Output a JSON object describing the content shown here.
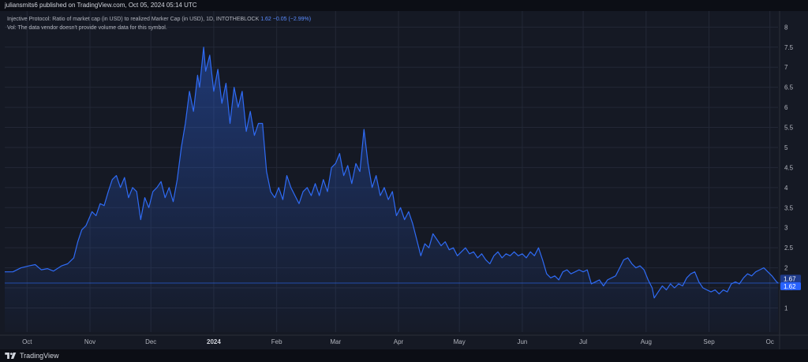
{
  "header": {
    "published_text": "juliansmits6 published on TradingView.com, Oct 05, 2024 05:14 UTC"
  },
  "legend": {
    "title": "Injective Protocol: Ratio of market cap (in USD) to realized Marker Cap (in USD), 1D, INTOTHEBLOCK",
    "last_value": "1.62",
    "change": "−0.05 (−2.99%)",
    "vol_note": "Vol: The data vendor doesn't provide volume data for this symbol."
  },
  "footer": {
    "brand": "TradingView",
    "logo_icon": "tradingview-logo-icon"
  },
  "colors": {
    "line": "#2f6bf5",
    "badge_current": "#2962ff",
    "badge_prev": "#1e3a8a",
    "background": "#151924",
    "grid": "#232836",
    "axis_text": "#b2b5be"
  },
  "chart_data": {
    "type": "area",
    "title": "Injective Protocol: Ratio of market cap (in USD) to realized Marker Cap (in USD), 1D, INTOTHEBLOCK",
    "x_range": [
      "2023-09-20",
      "2024-10-05"
    ],
    "ylim": [
      0.4,
      8.4
    ],
    "y_ticks": [
      1,
      1.5,
      2,
      2.5,
      3,
      3.5,
      4,
      4.5,
      5,
      5.5,
      6,
      6.5,
      7,
      7.5,
      8
    ],
    "x_ticks": [
      {
        "label": "Oct",
        "date": "2023-10-01",
        "bold": false
      },
      {
        "label": "Nov",
        "date": "2023-11-01",
        "bold": false
      },
      {
        "label": "Dec",
        "date": "2023-12-01",
        "bold": false
      },
      {
        "label": "2024",
        "date": "2024-01-01",
        "bold": true
      },
      {
        "label": "Feb",
        "date": "2024-02-01",
        "bold": false
      },
      {
        "label": "Mar",
        "date": "2024-03-01",
        "bold": false
      },
      {
        "label": "Apr",
        "date": "2024-04-01",
        "bold": false
      },
      {
        "label": "May",
        "date": "2024-05-01",
        "bold": false
      },
      {
        "label": "Jun",
        "date": "2024-06-01",
        "bold": false
      },
      {
        "label": "Jul",
        "date": "2024-07-01",
        "bold": false
      },
      {
        "label": "Aug",
        "date": "2024-08-01",
        "bold": false
      },
      {
        "label": "Sep",
        "date": "2024-09-01",
        "bold": false
      },
      {
        "label": "Oc",
        "date": "2024-10-01",
        "bold": false
      }
    ],
    "price_badges": [
      {
        "value": 1.67,
        "label": "1.67",
        "kind": "prev"
      },
      {
        "value": 1.62,
        "label": "1.62",
        "kind": "current"
      }
    ],
    "current_value": 1.62,
    "grid": true,
    "series": [
      {
        "values_by_date": [
          [
            "2023-09-20",
            1.9
          ],
          [
            "2023-09-24",
            1.9
          ],
          [
            "2023-09-28",
            2.0
          ],
          [
            "2023-10-02",
            2.05
          ],
          [
            "2023-10-05",
            2.08
          ],
          [
            "2023-10-08",
            1.95
          ],
          [
            "2023-10-11",
            1.98
          ],
          [
            "2023-10-14",
            1.92
          ],
          [
            "2023-10-18",
            2.05
          ],
          [
            "2023-10-21",
            2.1
          ],
          [
            "2023-10-24",
            2.25
          ],
          [
            "2023-10-26",
            2.65
          ],
          [
            "2023-10-28",
            2.95
          ],
          [
            "2023-10-30",
            3.05
          ],
          [
            "2023-11-02",
            3.4
          ],
          [
            "2023-11-04",
            3.3
          ],
          [
            "2023-11-06",
            3.6
          ],
          [
            "2023-11-08",
            3.55
          ],
          [
            "2023-11-10",
            3.9
          ],
          [
            "2023-11-12",
            4.2
          ],
          [
            "2023-11-14",
            4.3
          ],
          [
            "2023-11-16",
            4.0
          ],
          [
            "2023-11-18",
            4.25
          ],
          [
            "2023-11-20",
            3.75
          ],
          [
            "2023-11-22",
            4.0
          ],
          [
            "2023-11-24",
            3.9
          ],
          [
            "2023-11-26",
            3.2
          ],
          [
            "2023-11-28",
            3.75
          ],
          [
            "2023-11-30",
            3.5
          ],
          [
            "2023-12-02",
            3.9
          ],
          [
            "2023-12-04",
            4.0
          ],
          [
            "2023-12-06",
            4.15
          ],
          [
            "2023-12-08",
            3.75
          ],
          [
            "2023-12-10",
            4.0
          ],
          [
            "2023-12-12",
            3.65
          ],
          [
            "2023-12-14",
            4.2
          ],
          [
            "2023-12-16",
            5.0
          ],
          [
            "2023-12-18",
            5.6
          ],
          [
            "2023-12-20",
            6.4
          ],
          [
            "2023-12-22",
            5.9
          ],
          [
            "2023-12-24",
            6.8
          ],
          [
            "2023-12-25",
            6.5
          ],
          [
            "2023-12-27",
            7.5
          ],
          [
            "2023-12-28",
            6.9
          ],
          [
            "2023-12-30",
            7.3
          ],
          [
            "2024-01-01",
            6.4
          ],
          [
            "2024-01-03",
            6.95
          ],
          [
            "2024-01-05",
            6.1
          ],
          [
            "2024-01-07",
            6.6
          ],
          [
            "2024-01-09",
            5.6
          ],
          [
            "2024-01-11",
            6.5
          ],
          [
            "2024-01-13",
            6.0
          ],
          [
            "2024-01-15",
            6.4
          ],
          [
            "2024-01-17",
            5.4
          ],
          [
            "2024-01-19",
            5.9
          ],
          [
            "2024-01-21",
            5.3
          ],
          [
            "2024-01-23",
            5.6
          ],
          [
            "2024-01-25",
            5.6
          ],
          [
            "2024-01-27",
            4.4
          ],
          [
            "2024-01-29",
            3.9
          ],
          [
            "2024-01-31",
            3.75
          ],
          [
            "2024-02-02",
            4.0
          ],
          [
            "2024-02-04",
            3.7
          ],
          [
            "2024-02-06",
            4.3
          ],
          [
            "2024-02-08",
            4.0
          ],
          [
            "2024-02-10",
            3.8
          ],
          [
            "2024-02-12",
            3.6
          ],
          [
            "2024-02-14",
            3.9
          ],
          [
            "2024-02-16",
            4.0
          ],
          [
            "2024-02-18",
            3.8
          ],
          [
            "2024-02-20",
            4.1
          ],
          [
            "2024-02-22",
            3.8
          ],
          [
            "2024-02-24",
            4.2
          ],
          [
            "2024-02-26",
            3.9
          ],
          [
            "2024-02-28",
            4.5
          ],
          [
            "2024-03-01",
            4.6
          ],
          [
            "2024-03-03",
            4.85
          ],
          [
            "2024-03-05",
            4.3
          ],
          [
            "2024-03-07",
            4.55
          ],
          [
            "2024-03-09",
            4.1
          ],
          [
            "2024-03-11",
            4.6
          ],
          [
            "2024-03-13",
            4.4
          ],
          [
            "2024-03-15",
            5.45
          ],
          [
            "2024-03-17",
            4.6
          ],
          [
            "2024-03-19",
            4.0
          ],
          [
            "2024-03-21",
            4.3
          ],
          [
            "2024-03-23",
            3.8
          ],
          [
            "2024-03-25",
            4.0
          ],
          [
            "2024-03-27",
            3.7
          ],
          [
            "2024-03-29",
            3.9
          ],
          [
            "2024-03-31",
            3.3
          ],
          [
            "2024-04-02",
            3.5
          ],
          [
            "2024-04-04",
            3.2
          ],
          [
            "2024-04-06",
            3.4
          ],
          [
            "2024-04-08",
            3.1
          ],
          [
            "2024-04-10",
            2.7
          ],
          [
            "2024-04-12",
            2.3
          ],
          [
            "2024-04-14",
            2.6
          ],
          [
            "2024-04-16",
            2.5
          ],
          [
            "2024-04-18",
            2.85
          ],
          [
            "2024-04-20",
            2.7
          ],
          [
            "2024-04-22",
            2.55
          ],
          [
            "2024-04-24",
            2.65
          ],
          [
            "2024-04-26",
            2.45
          ],
          [
            "2024-04-28",
            2.5
          ],
          [
            "2024-04-30",
            2.3
          ],
          [
            "2024-05-02",
            2.4
          ],
          [
            "2024-05-04",
            2.5
          ],
          [
            "2024-05-06",
            2.35
          ],
          [
            "2024-05-08",
            2.4
          ],
          [
            "2024-05-10",
            2.25
          ],
          [
            "2024-05-12",
            2.35
          ],
          [
            "2024-05-14",
            2.2
          ],
          [
            "2024-05-16",
            2.1
          ],
          [
            "2024-05-18",
            2.3
          ],
          [
            "2024-05-20",
            2.4
          ],
          [
            "2024-05-22",
            2.25
          ],
          [
            "2024-05-24",
            2.35
          ],
          [
            "2024-05-26",
            2.3
          ],
          [
            "2024-05-28",
            2.4
          ],
          [
            "2024-05-30",
            2.3
          ],
          [
            "2024-06-01",
            2.35
          ],
          [
            "2024-06-03",
            2.25
          ],
          [
            "2024-06-05",
            2.4
          ],
          [
            "2024-06-07",
            2.3
          ],
          [
            "2024-06-09",
            2.5
          ],
          [
            "2024-06-11",
            2.2
          ],
          [
            "2024-06-13",
            1.85
          ],
          [
            "2024-06-15",
            1.75
          ],
          [
            "2024-06-17",
            1.8
          ],
          [
            "2024-06-19",
            1.7
          ],
          [
            "2024-06-21",
            1.9
          ],
          [
            "2024-06-23",
            1.95
          ],
          [
            "2024-06-25",
            1.85
          ],
          [
            "2024-06-27",
            1.9
          ],
          [
            "2024-06-29",
            1.95
          ],
          [
            "2024-07-01",
            1.9
          ],
          [
            "2024-07-03",
            1.95
          ],
          [
            "2024-07-05",
            1.6
          ],
          [
            "2024-07-07",
            1.65
          ],
          [
            "2024-07-09",
            1.7
          ],
          [
            "2024-07-11",
            1.55
          ],
          [
            "2024-07-13",
            1.7
          ],
          [
            "2024-07-15",
            1.75
          ],
          [
            "2024-07-17",
            1.8
          ],
          [
            "2024-07-19",
            2.0
          ],
          [
            "2024-07-21",
            2.2
          ],
          [
            "2024-07-23",
            2.25
          ],
          [
            "2024-07-25",
            2.1
          ],
          [
            "2024-07-27",
            2.0
          ],
          [
            "2024-07-29",
            2.05
          ],
          [
            "2024-07-31",
            1.95
          ],
          [
            "2024-08-02",
            1.7
          ],
          [
            "2024-08-04",
            1.5
          ],
          [
            "2024-08-05",
            1.25
          ],
          [
            "2024-08-07",
            1.4
          ],
          [
            "2024-08-09",
            1.55
          ],
          [
            "2024-08-11",
            1.45
          ],
          [
            "2024-08-13",
            1.6
          ],
          [
            "2024-08-15",
            1.5
          ],
          [
            "2024-08-17",
            1.6
          ],
          [
            "2024-08-19",
            1.55
          ],
          [
            "2024-08-21",
            1.75
          ],
          [
            "2024-08-23",
            1.85
          ],
          [
            "2024-08-25",
            1.9
          ],
          [
            "2024-08-27",
            1.65
          ],
          [
            "2024-08-29",
            1.5
          ],
          [
            "2024-08-31",
            1.45
          ],
          [
            "2024-09-02",
            1.4
          ],
          [
            "2024-09-04",
            1.45
          ],
          [
            "2024-09-06",
            1.35
          ],
          [
            "2024-09-08",
            1.45
          ],
          [
            "2024-09-10",
            1.4
          ],
          [
            "2024-09-12",
            1.6
          ],
          [
            "2024-09-14",
            1.65
          ],
          [
            "2024-09-16",
            1.6
          ],
          [
            "2024-09-18",
            1.75
          ],
          [
            "2024-09-20",
            1.85
          ],
          [
            "2024-09-22",
            1.8
          ],
          [
            "2024-09-24",
            1.9
          ],
          [
            "2024-09-26",
            1.95
          ],
          [
            "2024-09-28",
            2.0
          ],
          [
            "2024-09-30",
            1.9
          ],
          [
            "2024-10-02",
            1.8
          ],
          [
            "2024-10-04",
            1.67
          ],
          [
            "2024-10-05",
            1.62
          ]
        ]
      }
    ]
  }
}
